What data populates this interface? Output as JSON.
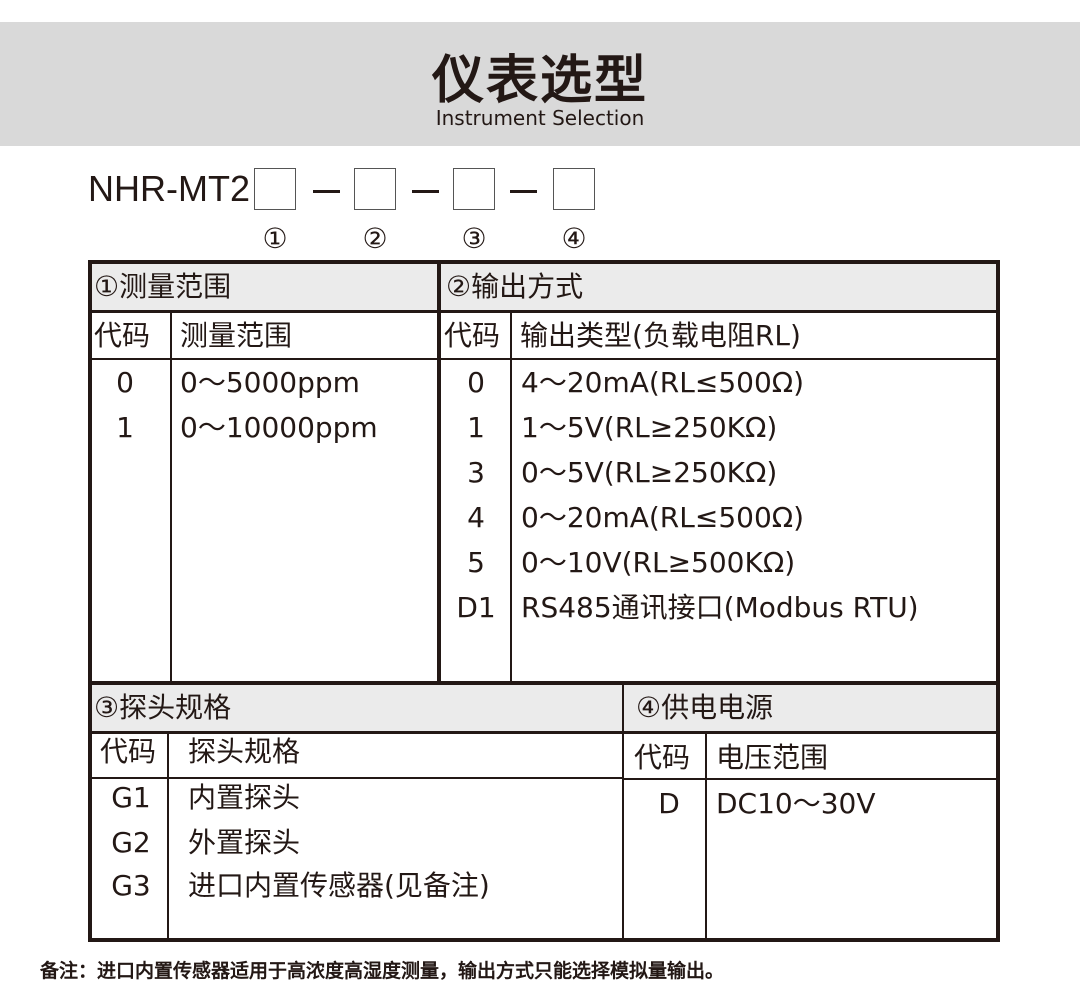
{
  "header": {
    "title": "仪表选型",
    "subtitle": "Instrument Selection"
  },
  "model": {
    "prefix": "NHR-MT2",
    "slot_numbers": [
      "①",
      "②",
      "③",
      "④"
    ]
  },
  "sections": {
    "range": {
      "title": "①测量范围",
      "col_code": "代码",
      "col_value": "测量范围",
      "rows": [
        {
          "code": "0",
          "value": "0～5000ppm"
        },
        {
          "code": "1",
          "value": "0～10000ppm"
        }
      ]
    },
    "output": {
      "title": "②输出方式",
      "col_code": "代码",
      "col_value": "输出类型(负载电阻RL)",
      "rows": [
        {
          "code": "0",
          "value": "4～20mA(RL≤500Ω)"
        },
        {
          "code": "1",
          "value": "1～5V(RL≥250KΩ)"
        },
        {
          "code": "3",
          "value": "0～5V(RL≥250KΩ)"
        },
        {
          "code": "4",
          "value": "0～20mA(RL≤500Ω)"
        },
        {
          "code": "5",
          "value": "0～10V(RL≥500KΩ)"
        },
        {
          "code": "D1",
          "value": "RS485通讯接口(Modbus RTU)"
        }
      ]
    },
    "probe": {
      "title": "③探头规格",
      "col_code": "代码",
      "col_value": "探头规格",
      "rows": [
        {
          "code": "G1",
          "value": "内置探头"
        },
        {
          "code": "G2",
          "value": "外置探头"
        },
        {
          "code": "G3",
          "value": "进口内置传感器(见备注)"
        }
      ]
    },
    "power": {
      "title": "④供电电源",
      "col_code": "代码",
      "col_value": "电压范围",
      "rows": [
        {
          "code": "D",
          "value": "DC10～30V"
        }
      ]
    }
  },
  "note": "备注：进口内置传感器适用于高浓度高湿度测量，输出方式只能选择模拟量输出。"
}
